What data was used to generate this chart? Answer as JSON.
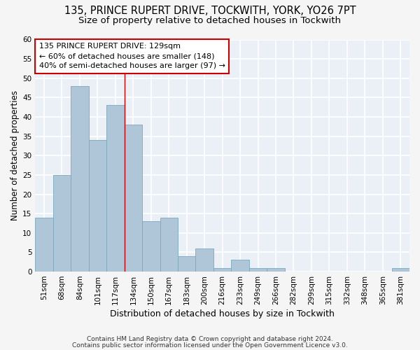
{
  "title1": "135, PRINCE RUPERT DRIVE, TOCKWITH, YORK, YO26 7PT",
  "title2": "Size of property relative to detached houses in Tockwith",
  "xlabel": "Distribution of detached houses by size in Tockwith",
  "ylabel": "Number of detached properties",
  "categories": [
    "51sqm",
    "68sqm",
    "84sqm",
    "101sqm",
    "117sqm",
    "134sqm",
    "150sqm",
    "167sqm",
    "183sqm",
    "200sqm",
    "216sqm",
    "233sqm",
    "249sqm",
    "266sqm",
    "282sqm",
    "299sqm",
    "315sqm",
    "332sqm",
    "348sqm",
    "365sqm",
    "381sqm"
  ],
  "values": [
    14,
    25,
    48,
    34,
    43,
    38,
    13,
    14,
    4,
    6,
    1,
    3,
    1,
    1,
    0,
    0,
    0,
    0,
    0,
    0,
    1
  ],
  "bar_color": "#aec6d8",
  "bar_edge_color": "#7aaabb",
  "vline_color": "#cc0000",
  "vline_x": 4.5,
  "annotation_text": "135 PRINCE RUPERT DRIVE: 129sqm\n← 60% of detached houses are smaller (148)\n40% of semi-detached houses are larger (97) →",
  "annotation_box_facecolor": "#ffffff",
  "annotation_box_edgecolor": "#cc0000",
  "ylim": [
    0,
    60
  ],
  "yticks": [
    0,
    5,
    10,
    15,
    20,
    25,
    30,
    35,
    40,
    45,
    50,
    55,
    60
  ],
  "ax_facecolor": "#eaf0f6",
  "fig_facecolor": "#f5f5f5",
  "grid_color": "#ffffff",
  "footer1": "Contains HM Land Registry data © Crown copyright and database right 2024.",
  "footer2": "Contains public sector information licensed under the Open Government Licence v3.0.",
  "title1_fontsize": 10.5,
  "title2_fontsize": 9.5,
  "xlabel_fontsize": 9,
  "ylabel_fontsize": 8.5,
  "tick_fontsize": 7.5,
  "annotation_fontsize": 8,
  "footer_fontsize": 6.5
}
